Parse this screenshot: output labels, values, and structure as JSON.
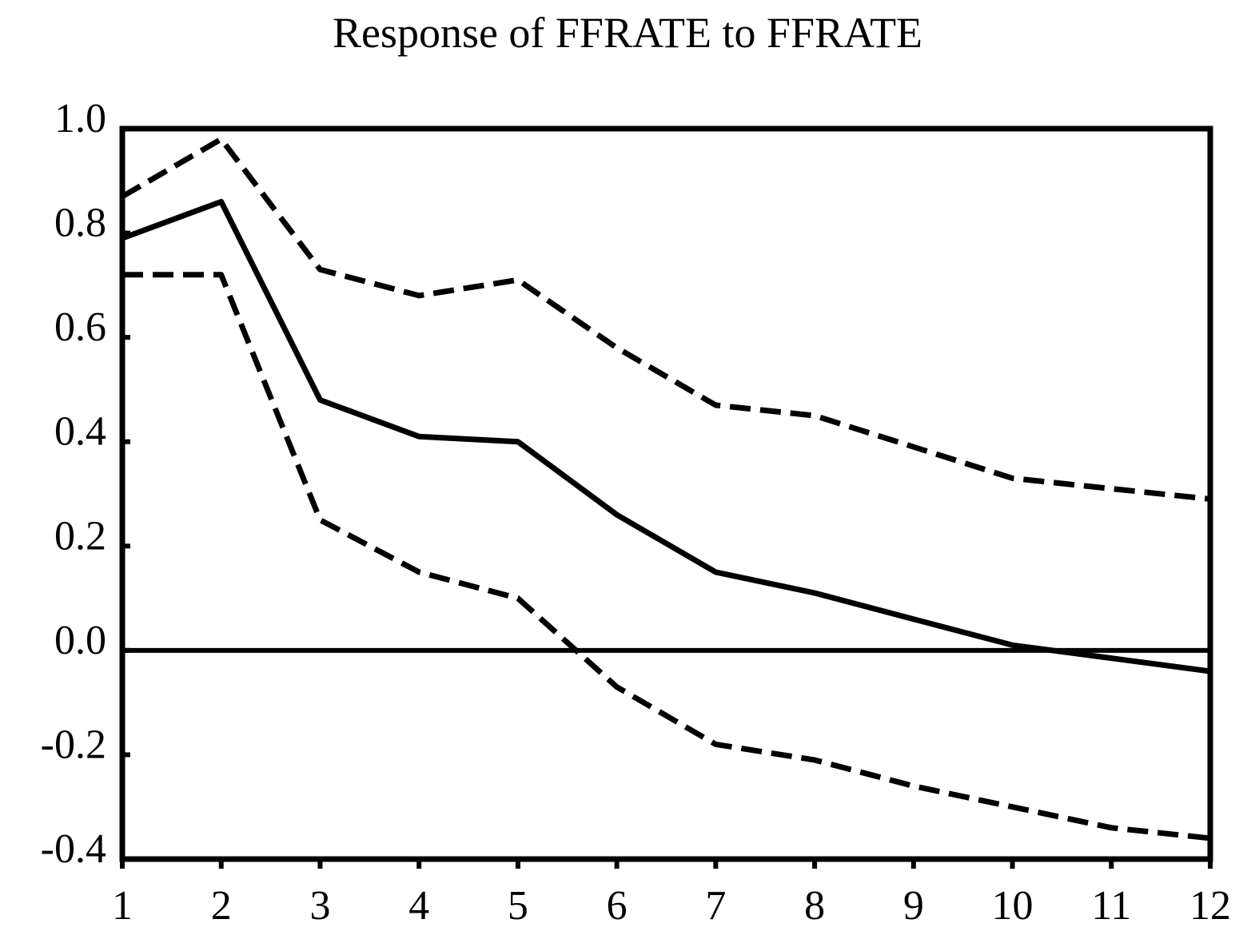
{
  "chart_data": {
    "type": "line",
    "title": "Response of FFRATE to FFRATE",
    "xlabel": "",
    "ylabel": "",
    "x": [
      1,
      2,
      3,
      4,
      5,
      6,
      7,
      8,
      9,
      10,
      11,
      12
    ],
    "xlim": [
      1,
      12
    ],
    "ylim": [
      -0.4,
      1.0
    ],
    "yticks": [
      -0.4,
      -0.2,
      0.0,
      0.2,
      0.4,
      0.6,
      0.8,
      1.0
    ],
    "ytick_labels": [
      "-0.4",
      "-0.2",
      "0.0",
      "0.2",
      "0.4",
      "0.6",
      "0.8",
      "1.0"
    ],
    "xtick_labels": [
      "1",
      "2",
      "3",
      "4",
      "5",
      "6",
      "7",
      "8",
      "9",
      "10",
      "11",
      "12"
    ],
    "series": [
      {
        "style": "solid",
        "values": [
          0.79,
          0.86,
          0.48,
          0.41,
          0.4,
          0.26,
          0.15,
          0.11,
          0.06,
          0.01,
          -0.015,
          -0.04
        ]
      },
      {
        "style": "dashed",
        "values": [
          0.87,
          0.98,
          0.73,
          0.68,
          0.71,
          0.58,
          0.47,
          0.45,
          0.39,
          0.33,
          0.31,
          0.29
        ]
      },
      {
        "style": "dashed",
        "values": [
          0.72,
          0.72,
          0.25,
          0.15,
          0.1,
          -0.07,
          -0.18,
          -0.21,
          -0.26,
          -0.3,
          -0.34,
          -0.36
        ]
      }
    ],
    "zero_line": true,
    "grid": false,
    "legend": "none",
    "colors": {
      "line": "#000000",
      "background": "#ffffff"
    }
  }
}
